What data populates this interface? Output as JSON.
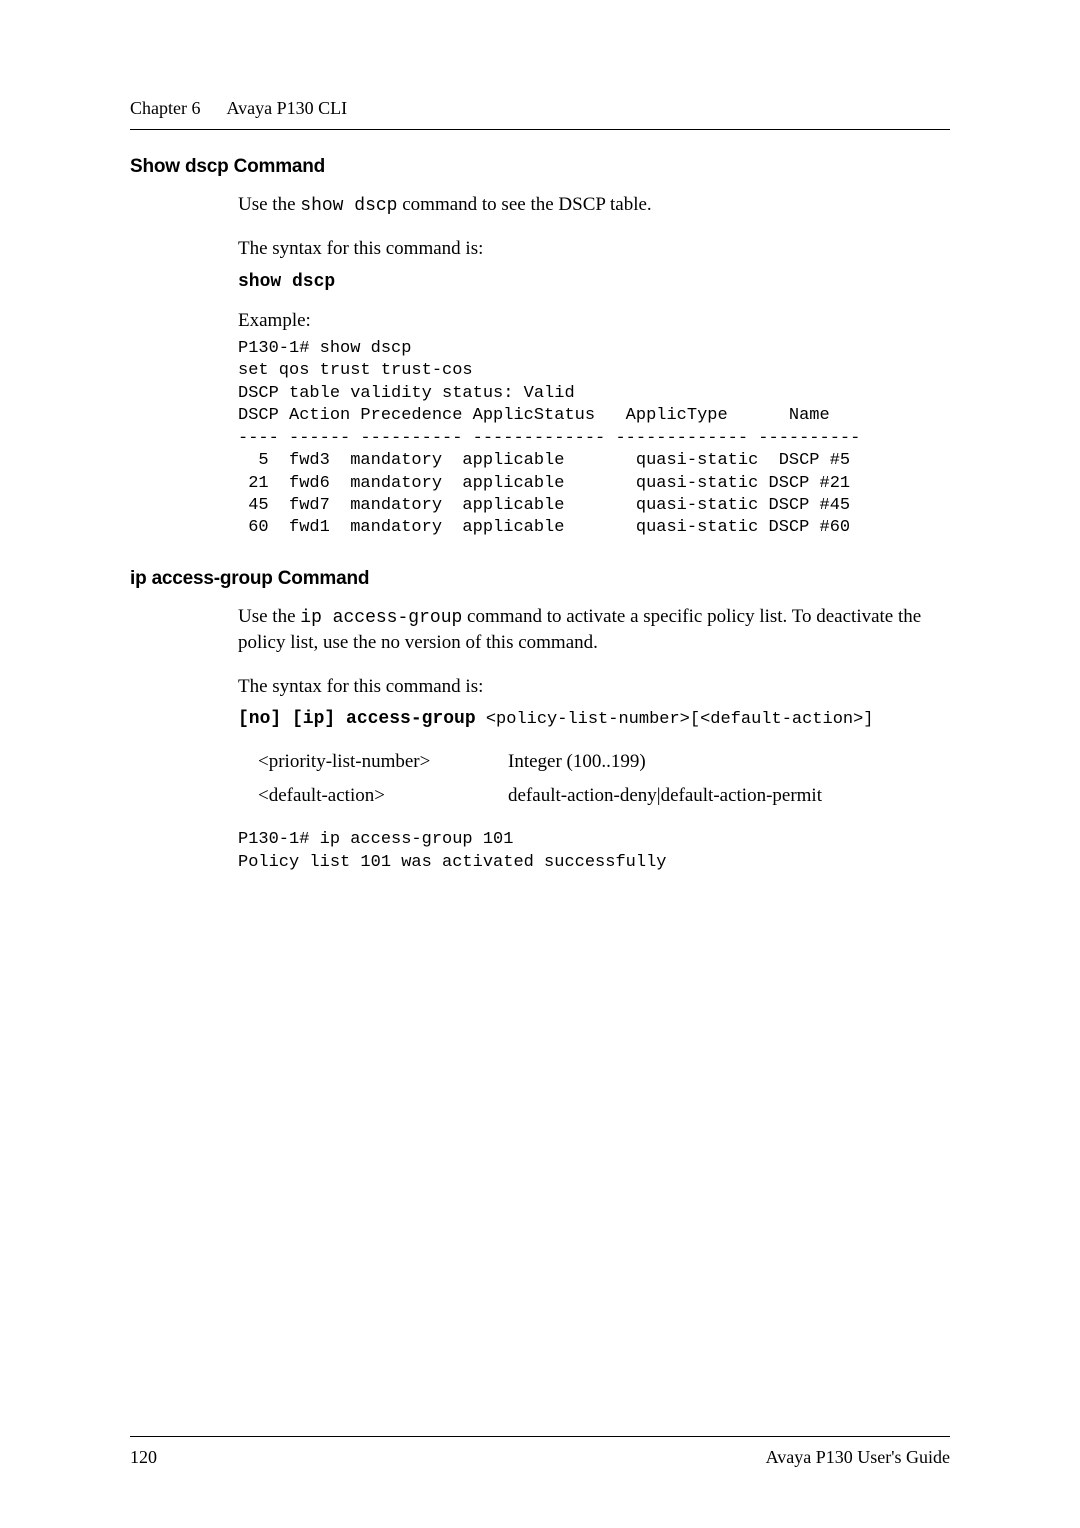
{
  "header": {
    "chapter": "Chapter 6",
    "title": "Avaya P130 CLI"
  },
  "section1": {
    "title": "Show dscp Command",
    "intro_pre": "Use the ",
    "intro_cmd": "show dscp",
    "intro_post": " command to see the DSCP table.",
    "syntax_label": "The syntax for this command is:",
    "syntax_cmd": "show dscp",
    "example_label": "Example:",
    "example_block": "P130-1# show dscp\nset qos trust trust-cos\nDSCP table validity status: Valid\nDSCP Action Precedence ApplicStatus   ApplicType      Name\n---- ------ ---------- ------------- ------------- ----------\n  5  fwd3  mandatory  applicable       quasi-static  DSCP #5\n 21  fwd6  mandatory  applicable       quasi-static DSCP #21\n 45  fwd7  mandatory  applicable       quasi-static DSCP #45\n 60  fwd1  mandatory  applicable       quasi-static DSCP #60"
  },
  "section2": {
    "title": " ip access-group Command",
    "intro_pre": "Use the ",
    "intro_cmd": "ip access-group",
    "intro_post": " command to activate a specific policy list. To deactivate the policy list, use the no version of this command.",
    "syntax_label": "The syntax for this command is:",
    "syntax_bold": "[no] [ip] access-group",
    "syntax_rest": " <policy-list-number>[<default-action>]",
    "params": [
      {
        "name": "<priority-list-number>",
        "desc": "Integer (100..199)"
      },
      {
        "name": "<default-action>",
        "desc": "default-action-deny|default-action-permit"
      }
    ],
    "example_block": "P130-1# ip access-group 101\nPolicy list 101 was activated successfully"
  },
  "footer": {
    "page": "120",
    "guide": "Avaya P130 User's Guide"
  }
}
